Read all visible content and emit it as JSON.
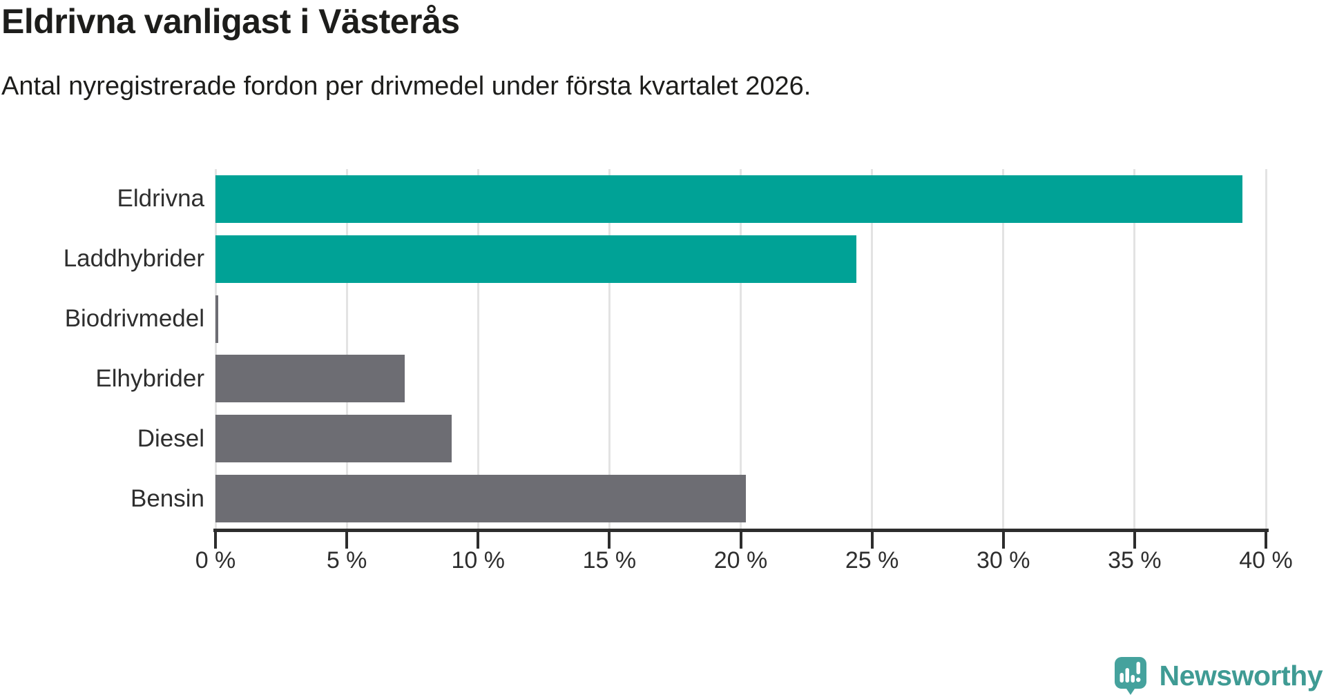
{
  "chart_data": {
    "type": "bar",
    "orientation": "horizontal",
    "title": "Eldrivna vanligast i Västerås",
    "subtitle": "Antal nyregistrerade fordon per drivmedel under första kvartalet 2026.",
    "categories": [
      "Eldrivna",
      "Laddhybrider",
      "Biodrivmedel",
      "Elhybrider",
      "Diesel",
      "Bensin"
    ],
    "values": [
      39.1,
      24.4,
      0.1,
      7.2,
      9.0,
      20.2
    ],
    "unit": "%",
    "bar_colors": [
      "#00a296",
      "#00a296",
      "#6d6d73",
      "#6d6d73",
      "#6d6d73",
      "#6d6d73"
    ],
    "xlim": [
      0,
      40
    ],
    "x_tick_values": [
      0,
      5,
      10,
      15,
      20,
      25,
      30,
      35,
      40
    ],
    "x_tick_labels": [
      "0 %",
      "5 %",
      "10 %",
      "15 %",
      "20 %",
      "25 %",
      "30 %",
      "35 %",
      "40 %"
    ],
    "grid": "vertical",
    "legend": "none",
    "colors": {
      "highlight": "#00a296",
      "default": "#6d6d73",
      "gridline": "#e3e3e3",
      "axis": "#2d2d2d",
      "text": "#1d1d1b",
      "label_text": "#2e2e2e"
    }
  },
  "branding": {
    "logo_text": "Newsworthy",
    "logo_text_color": "#3f9b94",
    "logo_icon": "newsworthy-speech-bubble-chart-icon",
    "logo_icon_color": "#45a29d"
  }
}
